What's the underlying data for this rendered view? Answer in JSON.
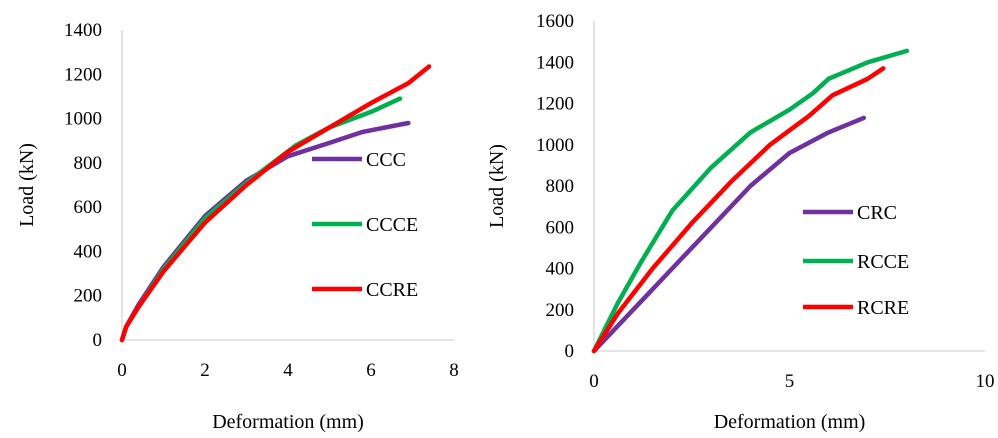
{
  "chart_data": [
    {
      "type": "line",
      "title": "",
      "xlabel": "Deformation (mm)",
      "ylabel": "Load (kN)",
      "xlim": [
        0,
        8
      ],
      "ylim": [
        0,
        1400
      ],
      "xticks": [
        0,
        2,
        4,
        6,
        8
      ],
      "yticks": [
        0,
        200,
        400,
        600,
        800,
        1000,
        1200,
        1400
      ],
      "grid": false,
      "legend_position": "right",
      "series": [
        {
          "name": "CCC",
          "color": "#7030A0",
          "x": [
            0,
            0.1,
            0.4,
            1.0,
            2.0,
            3.0,
            4.0,
            5.0,
            5.8,
            6.9
          ],
          "y": [
            0,
            60,
            160,
            330,
            560,
            720,
            830,
            890,
            940,
            980
          ]
        },
        {
          "name": "CCCE",
          "color": "#00B050",
          "x": [
            0,
            0.1,
            0.4,
            1.0,
            2.0,
            3.0,
            4.2,
            5.0,
            6.0,
            6.7
          ],
          "y": [
            0,
            60,
            150,
            320,
            550,
            710,
            880,
            960,
            1030,
            1090
          ]
        },
        {
          "name": "CCRE",
          "color": "#FF0000",
          "x": [
            0,
            0.1,
            0.4,
            1.0,
            2.0,
            3.0,
            4.0,
            5.0,
            6.0,
            6.9,
            7.4
          ],
          "y": [
            0,
            60,
            150,
            310,
            530,
            700,
            850,
            960,
            1070,
            1160,
            1235
          ]
        }
      ]
    },
    {
      "type": "line",
      "title": "",
      "xlabel": "Deformation (mm)",
      "ylabel": "Load (kN)",
      "xlim": [
        0,
        10
      ],
      "ylim": [
        0,
        1600
      ],
      "xticks": [
        0,
        5,
        10
      ],
      "yticks": [
        0,
        200,
        400,
        600,
        800,
        1000,
        1200,
        1400,
        1600
      ],
      "grid": false,
      "legend_position": "right",
      "series": [
        {
          "name": "CRC",
          "color": "#7030A0",
          "x": [
            0,
            1,
            2,
            3,
            4,
            5,
            6,
            6.9
          ],
          "y": [
            0,
            200,
            400,
            600,
            800,
            960,
            1060,
            1130
          ]
        },
        {
          "name": "RCCE",
          "color": "#00B050",
          "x": [
            0,
            0.6,
            1.2,
            2,
            3,
            4,
            5,
            5.6,
            6,
            7,
            8
          ],
          "y": [
            0,
            230,
            430,
            680,
            890,
            1060,
            1170,
            1250,
            1320,
            1400,
            1455
          ]
        },
        {
          "name": "RCRE",
          "color": "#FF0000",
          "x": [
            0,
            0.6,
            1.5,
            2.5,
            3.5,
            4.5,
            5.5,
            6.1,
            7,
            7.4
          ],
          "y": [
            0,
            180,
            400,
            620,
            820,
            1000,
            1140,
            1240,
            1320,
            1370
          ]
        }
      ]
    }
  ]
}
